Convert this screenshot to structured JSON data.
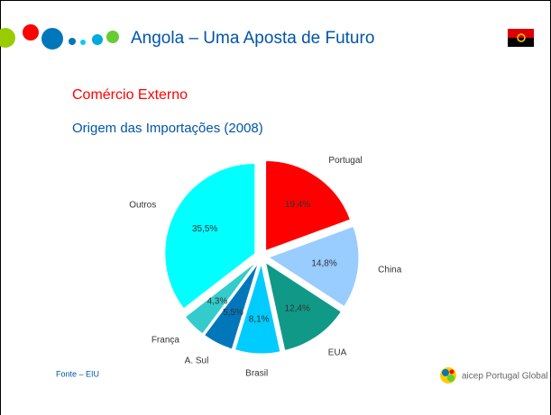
{
  "slide": {
    "header": "Angola – Uma Aposta de Futuro",
    "section": "Comércio Externo",
    "source": "Fonte – EIU",
    "logo": "aicep Portugal Global"
  },
  "chart_data": {
    "type": "pie",
    "title": "Origem das Importações (2008)",
    "categories": [
      "Portugal",
      "China",
      "EUA",
      "Brasil",
      "A. Sul",
      "França",
      "Outros"
    ],
    "values": [
      19.4,
      14.8,
      12.4,
      8.1,
      5.5,
      4.3,
      35.5
    ],
    "value_labels": [
      "19,4%",
      "14,8%",
      "12,4%",
      "8,1%",
      "5,5%",
      "4,3%",
      "35,5%"
    ],
    "colors": [
      "#ff0000",
      "#99ccff",
      "#119988",
      "#00ccff",
      "#0077bb",
      "#33cccc",
      "#00ffff"
    ]
  }
}
